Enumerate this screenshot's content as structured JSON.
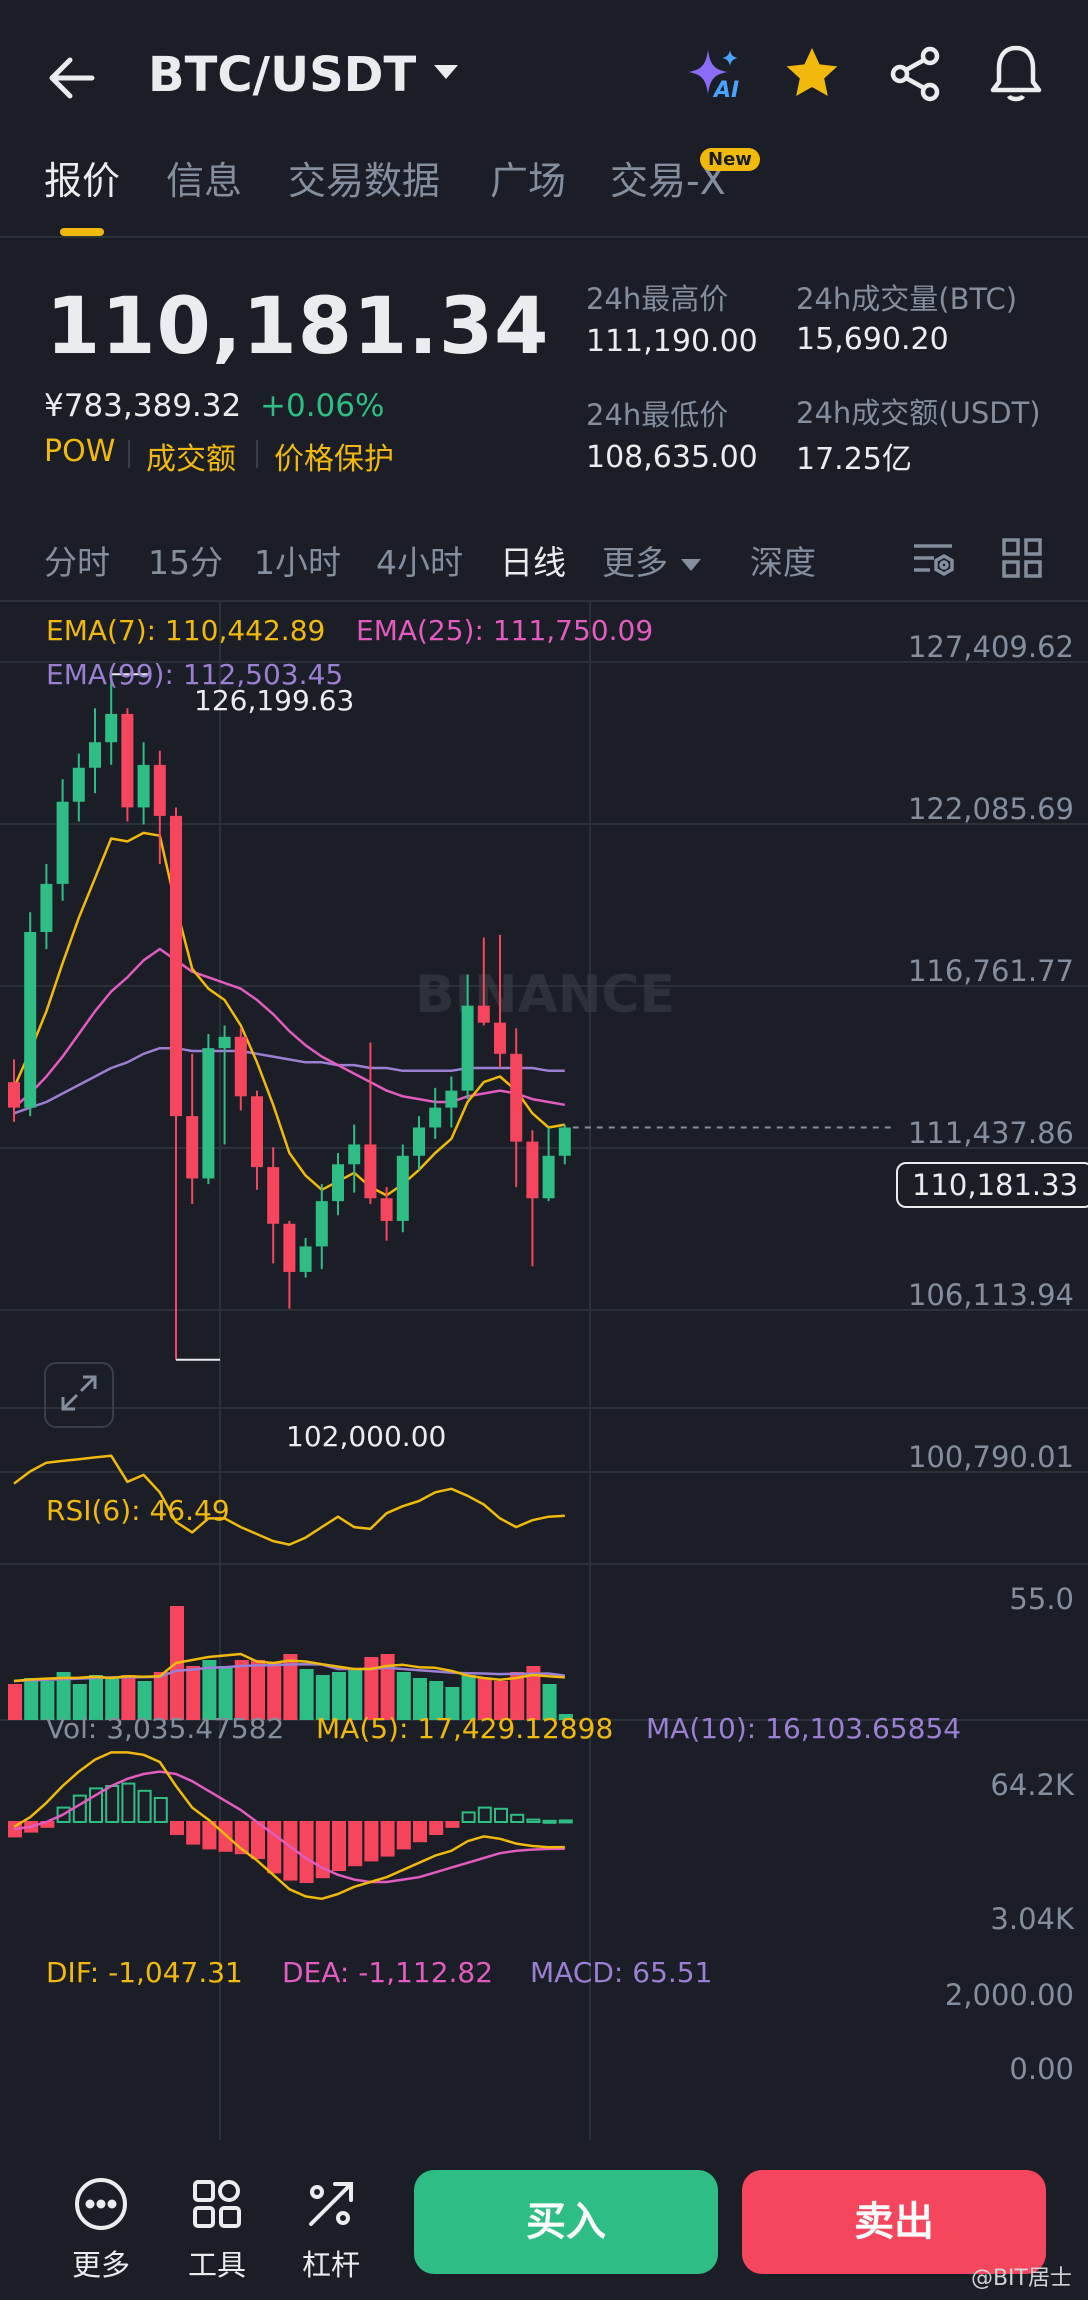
{
  "header": {
    "pair": "BTC/USDT",
    "ai_badge": "AI",
    "icons": [
      "back-arrow-icon",
      "chevron-down-icon",
      "ai-sparkle-icon",
      "star-icon",
      "share-icon",
      "bell-icon"
    ]
  },
  "tabs": [
    {
      "label": "报价"
    },
    {
      "label": "信息"
    },
    {
      "label": "交易数据"
    },
    {
      "label": "广场"
    },
    {
      "label": "交易-X"
    }
  ],
  "tab_new_badge": "New",
  "price": {
    "last": "110,181.34",
    "cny": "¥783,389.32",
    "change": "+0.06%",
    "tags": [
      "POW",
      "成交额",
      "价格保护"
    ]
  },
  "stats": {
    "high_label": "24h最高价",
    "high": "111,190.00",
    "low_label": "24h最低价",
    "low": "108,635.00",
    "vol_btc_label": "24h成交量(BTC)",
    "vol_btc": "15,690.20",
    "vol_usdt_label": "24h成交额(USDT)",
    "vol_usdt": "17.25亿"
  },
  "kline_tabs": [
    {
      "label": "分时"
    },
    {
      "label": "15分"
    },
    {
      "label": "1小时"
    },
    {
      "label": "4小时"
    },
    {
      "label": "日线"
    },
    {
      "label": "更多"
    },
    {
      "label": "深度"
    }
  ],
  "ema": {
    "ema7": "EMA(7): 110,442.89",
    "ema25": "EMA(25): 111,750.09",
    "ema99": "EMA(99): 112,503.45"
  },
  "watermark": "BINANCE",
  "price_axis": [
    "127,409.62",
    "122,085.69",
    "116,761.77",
    "111,437.86",
    "106,113.94",
    "100,790.01"
  ],
  "current_price_tag": "110,181.33",
  "high_marker": "126,199.63",
  "low_marker": "102,000.00",
  "rsi": {
    "label": "RSI(6): 46.49",
    "axis": "55.0"
  },
  "vol": {
    "vol": "Vol: 3,035.47582",
    "ma5": "MA(5): 17,429.12898",
    "ma10": "MA(10): 16,103.65854",
    "axis_top": "64.2K",
    "axis_bottom": "3.04K"
  },
  "macd": {
    "dif": "DIF: -1,047.31",
    "dea": "DEA: -1,112.82",
    "macd": "MACD: 65.51",
    "axis_top": "2,000.00",
    "axis_zero": "0.00"
  },
  "bottom": {
    "more": "更多",
    "tools": "工具",
    "leverage": "杠杆",
    "buy": "买入",
    "sell": "卖出",
    "watermark": "@BIT居士"
  },
  "colors": {
    "up": "#2ebd85",
    "down": "#f6465d",
    "accent": "#f0b90b",
    "ema25": "#e35bbf",
    "ema99": "#9b7fd4"
  },
  "chart_data": {
    "type": "candlestick",
    "ylim": [
      100790.01,
      127409.62
    ],
    "candles": [
      {
        "o": 111800,
        "h": 112600,
        "l": 110400,
        "c": 110900
      },
      {
        "o": 110900,
        "h": 117800,
        "l": 110600,
        "c": 117100
      },
      {
        "o": 117100,
        "h": 119500,
        "l": 116500,
        "c": 118800
      },
      {
        "o": 118800,
        "h": 122500,
        "l": 118200,
        "c": 121700
      },
      {
        "o": 121700,
        "h": 123400,
        "l": 121000,
        "c": 122900
      },
      {
        "o": 122900,
        "h": 125000,
        "l": 122000,
        "c": 123800
      },
      {
        "o": 123800,
        "h": 126199.63,
        "l": 123000,
        "c": 124800
      },
      {
        "o": 124800,
        "h": 125000,
        "l": 121000,
        "c": 121500
      },
      {
        "o": 121500,
        "h": 123800,
        "l": 120900,
        "c": 123000
      },
      {
        "o": 123000,
        "h": 123500,
        "l": 119500,
        "c": 121200
      },
      {
        "o": 121200,
        "h": 121500,
        "l": 102000,
        "c": 110600
      },
      {
        "o": 110600,
        "h": 112800,
        "l": 107500,
        "c": 108400
      },
      {
        "o": 108400,
        "h": 113500,
        "l": 108200,
        "c": 113000
      },
      {
        "o": 113000,
        "h": 113800,
        "l": 109600,
        "c": 113400
      },
      {
        "o": 113400,
        "h": 113700,
        "l": 110800,
        "c": 111300
      },
      {
        "o": 111300,
        "h": 111500,
        "l": 108000,
        "c": 108800
      },
      {
        "o": 108800,
        "h": 109500,
        "l": 105400,
        "c": 106800
      },
      {
        "o": 106800,
        "h": 106900,
        "l": 103800,
        "c": 105100
      },
      {
        "o": 105100,
        "h": 106300,
        "l": 104900,
        "c": 106000
      },
      {
        "o": 106000,
        "h": 108200,
        "l": 105200,
        "c": 107600
      },
      {
        "o": 107600,
        "h": 109300,
        "l": 107100,
        "c": 108900
      },
      {
        "o": 108900,
        "h": 110300,
        "l": 107900,
        "c": 109600
      },
      {
        "o": 109600,
        "h": 113200,
        "l": 107500,
        "c": 107700
      },
      {
        "o": 107700,
        "h": 108100,
        "l": 106200,
        "c": 106900
      },
      {
        "o": 106900,
        "h": 109600,
        "l": 106500,
        "c": 109200
      },
      {
        "o": 109200,
        "h": 110600,
        "l": 108700,
        "c": 110200
      },
      {
        "o": 110200,
        "h": 111600,
        "l": 109800,
        "c": 110900
      },
      {
        "o": 110900,
        "h": 112000,
        "l": 110200,
        "c": 111500
      },
      {
        "o": 111500,
        "h": 115600,
        "l": 111200,
        "c": 114500
      },
      {
        "o": 114500,
        "h": 116900,
        "l": 113800,
        "c": 113900
      },
      {
        "o": 113900,
        "h": 117000,
        "l": 112300,
        "c": 112800
      },
      {
        "o": 112800,
        "h": 113700,
        "l": 108100,
        "c": 109700
      },
      {
        "o": 109700,
        "h": 110100,
        "l": 105300,
        "c": 107700
      },
      {
        "o": 107700,
        "h": 110200,
        "l": 107600,
        "c": 109200
      },
      {
        "o": 109200,
        "h": 110300,
        "l": 108900,
        "c": 110200
      }
    ],
    "up_flags": [
      false,
      true,
      true,
      true,
      true,
      true,
      true,
      false,
      true,
      false,
      false,
      false,
      true,
      true,
      false,
      false,
      false,
      false,
      true,
      true,
      true,
      true,
      false,
      false,
      true,
      true,
      true,
      true,
      true,
      false,
      false,
      false,
      false,
      true,
      true
    ],
    "ema7": [
      111600,
      112900,
      114300,
      116000,
      117600,
      119000,
      120400,
      120300,
      120600,
      120500,
      118000,
      115800,
      115100,
      114700,
      113800,
      112500,
      111000,
      109300,
      108500,
      108000,
      108300,
      108600,
      108100,
      107800,
      108200,
      108700,
      109300,
      109800,
      111100,
      111800,
      112000,
      111500,
      110700,
      110200,
      110300
    ],
    "ema25": [
      110900,
      111400,
      112000,
      112700,
      113500,
      114300,
      115000,
      115500,
      116100,
      116500,
      116100,
      115700,
      115500,
      115300,
      115100,
      114700,
      114200,
      113600,
      113100,
      112700,
      112400,
      112100,
      111800,
      111500,
      111300,
      111200,
      111100,
      111100,
      111300,
      111400,
      111500,
      111400,
      111200,
      111100,
      111000
    ],
    "ema99": [
      110700,
      110900,
      111100,
      111400,
      111700,
      112000,
      112300,
      112500,
      112800,
      113000,
      113000,
      112900,
      112900,
      112900,
      112900,
      112800,
      112700,
      112600,
      112500,
      112500,
      112400,
      112400,
      112300,
      112300,
      112200,
      112200,
      112200,
      112200,
      112300,
      112300,
      112300,
      112300,
      112300,
      112200,
      112200
    ],
    "rsi": [
      65,
      72,
      77,
      78,
      79,
      80,
      81,
      66,
      70,
      60,
      43,
      37,
      45,
      45,
      40,
      36,
      32,
      30,
      34,
      40,
      46,
      40,
      39,
      48,
      52,
      55,
      60,
      62,
      58,
      53,
      45,
      40,
      44,
      46,
      46.49
    ],
    "rsi_range": [
      20,
      90
    ],
    "volume": [
      12,
      14,
      13,
      16,
      12,
      15,
      14,
      15,
      13,
      16,
      38,
      18,
      20,
      18,
      20,
      20,
      19,
      22,
      17,
      15,
      16,
      17,
      21,
      22,
      16,
      14,
      13,
      11,
      15,
      14,
      13,
      16,
      18,
      12,
      2
    ],
    "volume_ma5": [
      13,
      13.5,
      13.8,
      14,
      14.1,
      14.4,
      14,
      14.6,
      14.4,
      14.6,
      19,
      20,
      21,
      21.5,
      22,
      19.5,
      19,
      19.8,
      19.5,
      18.6,
      17.8,
      17,
      17,
      18,
      18.4,
      17.6,
      17.4,
      16.4,
      14.8,
      14,
      13.4,
      14,
      15,
      14.6,
      14.2
    ],
    "volume_ma10": [
      13,
      13.2,
      13.4,
      13.6,
      13.8,
      14,
      14.2,
      14.2,
      14.3,
      14.4,
      16.4,
      16.8,
      17.4,
      17.6,
      18,
      18.2,
      18.3,
      18.5,
      18.6,
      18.5,
      17,
      17,
      17,
      17.4,
      17,
      16.6,
      16.2,
      15.8,
      15.6,
      15.5,
      15.3,
      15.4,
      15.4,
      15.5,
      14.8
    ],
    "vol_max": 40,
    "macd_hist": [
      -600,
      -400,
      -200,
      600,
      1100,
      1400,
      1500,
      1600,
      1300,
      1000,
      -500,
      -900,
      -1100,
      -1200,
      -1300,
      -1500,
      -2100,
      -2400,
      -2500,
      -2300,
      -2000,
      -1800,
      -1600,
      -1400,
      -1100,
      -800,
      -500,
      -200,
      400,
      600,
      550,
      300,
      100,
      50,
      65.51
    ],
    "macd_dif": [
      -200,
      200,
      800,
      1500,
      2100,
      2600,
      2900,
      2900,
      2800,
      2500,
      1500,
      600,
      100,
      -500,
      -1100,
      -1600,
      -2200,
      -2800,
      -3100,
      -3200,
      -3000,
      -2700,
      -2500,
      -2300,
      -2000,
      -1700,
      -1400,
      -1200,
      -800,
      -600,
      -700,
      -900,
      -1000,
      -1050,
      -1047.31
    ],
    "macd_dea": [
      -300,
      -200,
      0,
      300,
      700,
      1100,
      1500,
      1800,
      2000,
      2100,
      2000,
      1700,
      1300,
      900,
      500,
      0,
      -500,
      -1000,
      -1500,
      -1900,
      -2200,
      -2400,
      -2500,
      -2500,
      -2400,
      -2300,
      -2100,
      -1900,
      -1700,
      -1500,
      -1300,
      -1200,
      -1150,
      -1120,
      -1112.82
    ],
    "macd_range": [
      -4000,
      3000
    ]
  }
}
